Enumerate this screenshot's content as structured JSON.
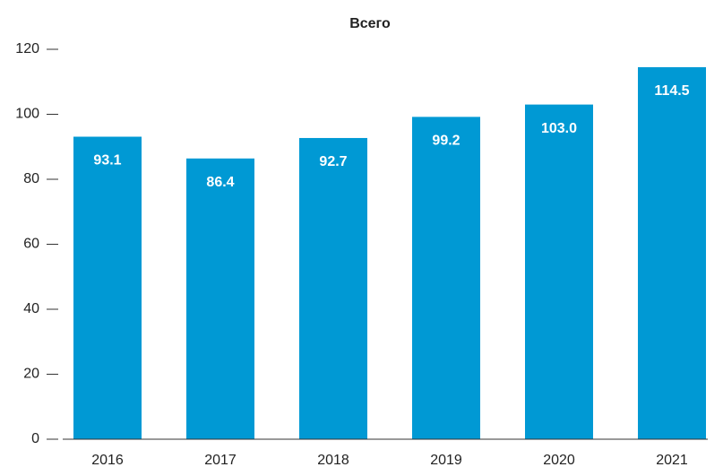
{
  "chart_data": {
    "type": "bar",
    "title": "Всего",
    "categories": [
      "2016",
      "2017",
      "2018",
      "2019",
      "2020",
      "2021"
    ],
    "values": [
      93.1,
      86.4,
      92.7,
      99.2,
      103.0,
      114.5
    ],
    "value_labels": [
      "93.1",
      "86.4",
      "92.7",
      "99.2",
      "103.0",
      "114.5"
    ],
    "color": "#0099d4",
    "ylim": [
      0,
      120
    ],
    "yticks": [
      0,
      20,
      40,
      60,
      80,
      100,
      120
    ]
  }
}
